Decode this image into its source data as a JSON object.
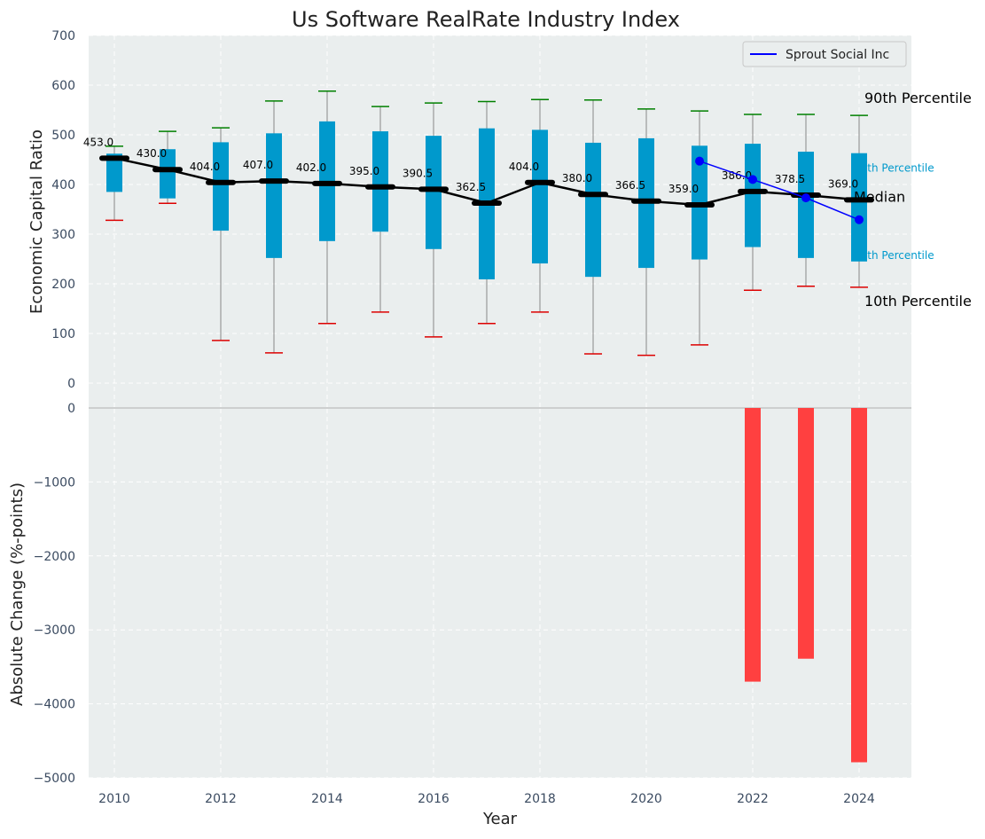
{
  "chart_data": [
    {
      "type": "box",
      "title": "Us Software RealRate Industry Index",
      "ylabel": "Economic Capital Ratio",
      "ylim": [
        0,
        700
      ],
      "yticks": [
        0,
        100,
        200,
        300,
        400,
        500,
        600,
        700
      ],
      "grid": true,
      "legend_position": "top-right",
      "years": [
        2010,
        2011,
        2012,
        2013,
        2014,
        2015,
        2016,
        2017,
        2018,
        2019,
        2020,
        2021,
        2022,
        2023,
        2024
      ],
      "p10": [
        328,
        362,
        86,
        61,
        120,
        143,
        93,
        120,
        143,
        59,
        56,
        77,
        187,
        195,
        193
      ],
      "p25": [
        385,
        372,
        307,
        252,
        286,
        305,
        270,
        209,
        241,
        214,
        232,
        249,
        274,
        252,
        245
      ],
      "median": [
        453.0,
        430.0,
        404.0,
        407.0,
        402.0,
        395.0,
        390.5,
        362.5,
        404.0,
        380.0,
        366.5,
        359.0,
        386.0,
        378.5,
        369.0
      ],
      "median_labels": [
        "453.0",
        "430.0",
        "404.0",
        "407.0",
        "402.0",
        "395.0",
        "390.5",
        "362.5",
        "404.0",
        "380.0",
        "366.5",
        "359.0",
        "386.0",
        "378.5",
        "369.0"
      ],
      "p75": [
        462,
        471,
        485,
        503,
        527,
        507,
        498,
        513,
        510,
        484,
        493,
        478,
        482,
        466,
        463
      ],
      "p90": [
        477,
        507,
        514,
        568,
        588,
        557,
        564,
        567,
        571,
        570,
        552,
        548,
        541,
        541,
        539
      ],
      "series": [
        {
          "name": "Sprout Social Inc",
          "x": [
            2021,
            2022,
            2023,
            2024
          ],
          "y": [
            447,
            410,
            373,
            329
          ]
        }
      ],
      "annotations": {
        "p90": "90th Percentile",
        "p75": "75th Percentile",
        "median": "Median",
        "p25": "25th Percentile",
        "p10": "10th Percentile"
      }
    },
    {
      "type": "bar",
      "xlabel": "Year",
      "ylabel": "Absolute Change (%-points)",
      "ylim": [
        -5000,
        0
      ],
      "yticks": [
        0,
        -1000,
        -2000,
        -3000,
        -4000,
        -5000
      ],
      "ytick_labels": [
        "0",
        "−1000",
        "−2000",
        "−3000",
        "−4000",
        "−5000"
      ],
      "xticks": [
        "2010",
        "2012",
        "2014",
        "2016",
        "2018",
        "2020",
        "2022",
        "2024"
      ],
      "categories": [
        2022,
        2023,
        2024
      ],
      "values": [
        -3700,
        -3390,
        -4790
      ],
      "grid": true
    }
  ],
  "colors": {
    "panel_bg": "#eaeeee",
    "box": "#0099cc",
    "median_line": "#000000",
    "whisker_top": "#008000",
    "whisker_bottom": "#dd0000",
    "series_line": "#0000ff",
    "bar": "#ff4040",
    "tick_text": "#3a4a60"
  }
}
